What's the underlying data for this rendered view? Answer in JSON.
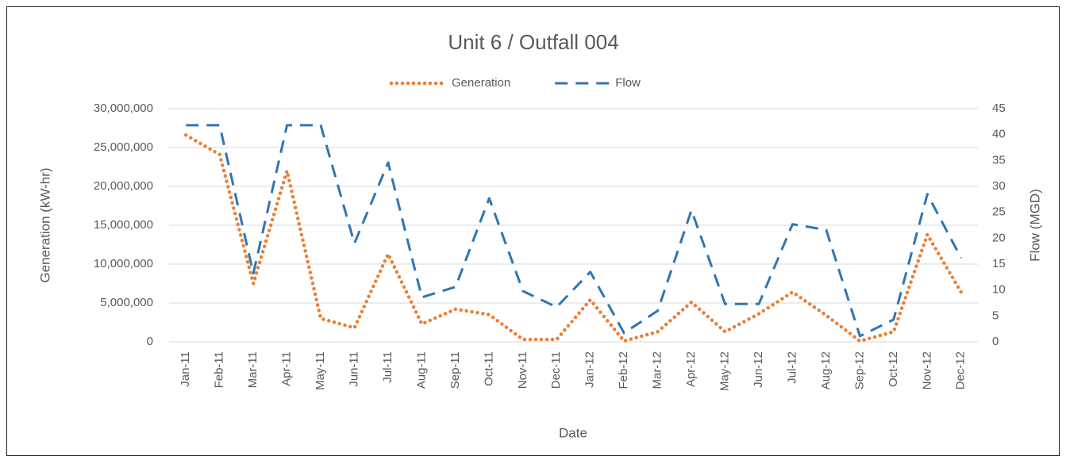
{
  "chart_data": {
    "type": "line",
    "title": "Unit 6 / Outfall 004",
    "x_label": "Date",
    "y_label": "Generation (kW-hr)",
    "y2_label": "Flow (MGD)",
    "categories": [
      "Jan-11",
      "Feb-11",
      "Mar-11",
      "Apr-11",
      "May-11",
      "Jun-11",
      "Jul-11",
      "Aug-11",
      "Sep-11",
      "Oct-11",
      "Nov-11",
      "Dec-11",
      "Jan-12",
      "Feb-12",
      "Mar-12",
      "Apr-12",
      "May-12",
      "Jun-12",
      "Jul-12",
      "Aug-12",
      "Sep-12",
      "Oct-12",
      "Nov-12",
      "Dec-12"
    ],
    "series": [
      {
        "name": "Generation",
        "color": "#ed7d31",
        "style": "dotted",
        "values": [
          26600000,
          24100000,
          7500000,
          22000000,
          3000000,
          1800000,
          11300000,
          2300000,
          4200000,
          3500000,
          300000,
          300000,
          5400000,
          100000,
          1300000,
          5100000,
          1300000,
          3600000,
          6400000,
          3400000,
          100000,
          1300000,
          13800000,
          6400000
        ]
      },
      {
        "name": "Flow",
        "color": "#2e75b6",
        "style": "dashed",
        "axis": "y2",
        "values": [
          41.8,
          41.8,
          13.2,
          41.8,
          41.8,
          19,
          34.6,
          8.6,
          10.6,
          27.7,
          9.8,
          6.7,
          13.5,
          1.7,
          6.0,
          25.4,
          7.3,
          7.3,
          22.7,
          21.6,
          1.1,
          4.3,
          28.5,
          16.2
        ]
      }
    ],
    "ylim": [
      0,
      30000000
    ],
    "yticks": [
      0,
      {
        "value": 5000000,
        "label": "5,000,000"
      },
      {
        "value": 10000000,
        "label": "10,000,000"
      },
      {
        "value": 15000000,
        "label": "15,000,000"
      },
      {
        "value": 20000000,
        "label": "20,000,000"
      },
      {
        "value": 25000000,
        "label": "25,000,000"
      },
      {
        "value": 30000000,
        "label": "30,000,000"
      }
    ],
    "y2lim": [
      0,
      45
    ],
    "y2ticks": [
      0,
      5,
      10,
      15,
      20,
      25,
      30,
      35,
      40,
      45
    ],
    "grid": true,
    "legend": "top"
  }
}
